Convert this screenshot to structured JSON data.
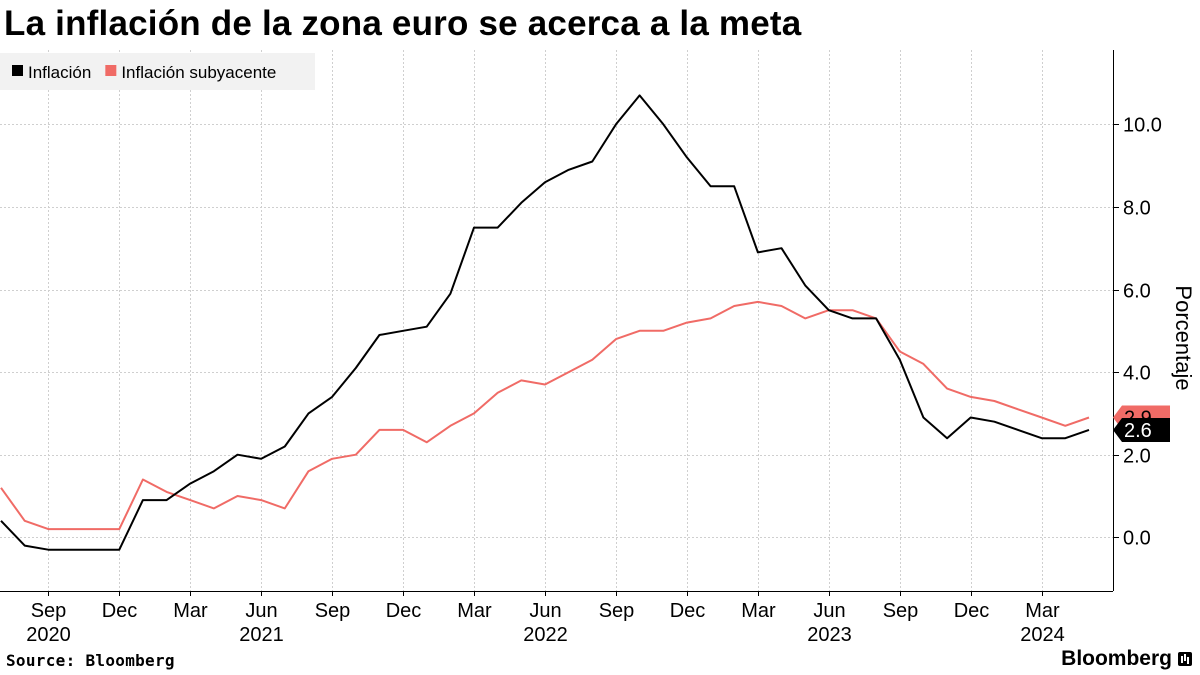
{
  "title": "La inflación de la zona euro se acerca a la meta",
  "source": "Source: Bloomberg",
  "brand": "Bloomberg",
  "chart_data": {
    "type": "line",
    "ylabel": "Porcentaje",
    "ylim": [
      -1.3,
      11.8
    ],
    "y_ticks": [
      0,
      2,
      4,
      6,
      8,
      10
    ],
    "y_tick_labels": [
      "0.0",
      "2.0",
      "4.0",
      "6.0",
      "8.0",
      "10.0"
    ],
    "x_ticks": [
      {
        "month": "2020-09",
        "label": "Sep",
        "year": "2020"
      },
      {
        "month": "2020-12",
        "label": "Dec",
        "year": ""
      },
      {
        "month": "2021-03",
        "label": "Mar",
        "year": ""
      },
      {
        "month": "2021-06",
        "label": "Jun",
        "year": "2021"
      },
      {
        "month": "2021-09",
        "label": "Sep",
        "year": ""
      },
      {
        "month": "2021-12",
        "label": "Dec",
        "year": ""
      },
      {
        "month": "2022-03",
        "label": "Mar",
        "year": ""
      },
      {
        "month": "2022-06",
        "label": "Jun",
        "year": "2022"
      },
      {
        "month": "2022-09",
        "label": "Sep",
        "year": ""
      },
      {
        "month": "2022-12",
        "label": "Dec",
        "year": ""
      },
      {
        "month": "2023-03",
        "label": "Mar",
        "year": ""
      },
      {
        "month": "2023-06",
        "label": "Jun",
        "year": "2023"
      },
      {
        "month": "2023-09",
        "label": "Sep",
        "year": ""
      },
      {
        "month": "2023-12",
        "label": "Dec",
        "year": ""
      },
      {
        "month": "2024-03",
        "label": "Mar",
        "year": "2024"
      }
    ],
    "x_start": "2020-07",
    "x_end": "2024-05",
    "series": [
      {
        "name": "Inflación",
        "color": "#000000",
        "start": "2020-07",
        "values": [
          0.4,
          -0.2,
          -0.3,
          -0.3,
          -0.3,
          -0.3,
          0.9,
          0.9,
          1.3,
          1.6,
          2.0,
          1.9,
          2.2,
          3.0,
          3.4,
          4.1,
          4.9,
          5.0,
          5.1,
          5.9,
          7.5,
          7.5,
          8.1,
          8.6,
          8.9,
          9.1,
          10.0,
          10.7,
          10.0,
          9.2,
          8.5,
          8.5,
          6.9,
          7.0,
          6.1,
          5.5,
          5.3,
          5.3,
          4.3,
          2.9,
          2.4,
          2.9,
          2.8,
          2.6,
          2.4,
          2.4,
          2.6
        ],
        "last_label": "2.6"
      },
      {
        "name": "Inflación subyacente",
        "color": "#f06b66",
        "start": "2020-07",
        "values": [
          1.2,
          0.4,
          0.2,
          0.2,
          0.2,
          0.2,
          1.4,
          1.1,
          0.9,
          0.7,
          1.0,
          0.9,
          0.7,
          1.6,
          1.9,
          2.0,
          2.6,
          2.6,
          2.3,
          2.7,
          3.0,
          3.5,
          3.8,
          3.7,
          4.0,
          4.3,
          4.8,
          5.0,
          5.0,
          5.2,
          5.3,
          5.6,
          5.7,
          5.6,
          5.3,
          5.5,
          5.5,
          5.3,
          4.5,
          4.2,
          3.6,
          3.4,
          3.3,
          3.1,
          2.9,
          2.7,
          2.9
        ],
        "last_label": "2.9"
      }
    ]
  }
}
